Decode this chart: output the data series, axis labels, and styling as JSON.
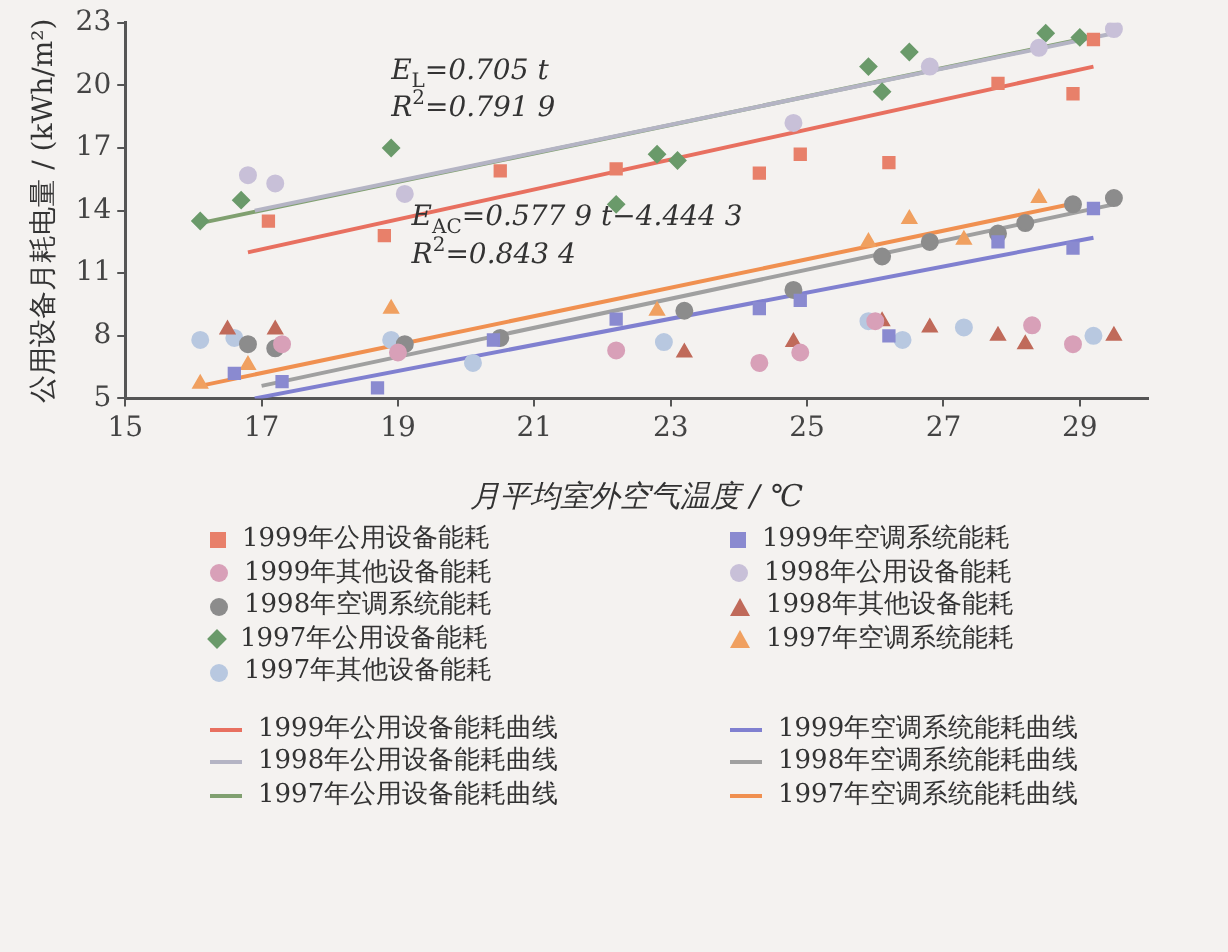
{
  "chart_data": {
    "type": "scatter",
    "xlabel": "月平均室外空气温度 / ℃",
    "ylabel": "公用设备月耗电量 / (kWh/m²)",
    "xlim": [
      15,
      30
    ],
    "xticks": [
      15,
      17,
      19,
      21,
      23,
      25,
      27,
      29
    ],
    "ylim": [
      5,
      23
    ],
    "yticks": [
      5,
      8,
      11,
      14,
      17,
      20,
      23
    ],
    "grid": false,
    "legend": "bottom",
    "annotations": [
      "E$_{L}$=0.705 t",
      "R$^{2}$=0.791 9",
      "E$_{AC}$=0.577 9 t−4.444 3",
      "R$^{2}$=0.843 4"
    ],
    "series": [
      {
        "name": "1999年公用设备能耗",
        "type": "scatter",
        "marker": "square",
        "color": "#e8806a",
        "x": [
          17.1,
          18.8,
          20.5,
          22.2,
          24.3,
          24.9,
          26.2,
          27.8,
          28.9,
          29.2
        ],
        "values": [
          13.5,
          12.8,
          15.9,
          16.0,
          15.8,
          16.7,
          16.3,
          20.1,
          19.6,
          22.2
        ]
      },
      {
        "name": "1999年空调系统能耗",
        "type": "scatter",
        "marker": "square",
        "color": "#8a8ad0",
        "x": [
          16.6,
          17.3,
          18.7,
          20.4,
          22.2,
          24.3,
          24.9,
          26.2,
          27.8,
          28.9,
          29.2
        ],
        "values": [
          6.2,
          5.8,
          5.5,
          7.8,
          8.8,
          9.3,
          9.7,
          8.0,
          12.5,
          12.2,
          14.1
        ]
      },
      {
        "name": "1999年其他设备能耗",
        "type": "scatter",
        "marker": "circle",
        "color": "#d8a0b8",
        "x": [
          17.3,
          19.0,
          22.2,
          24.3,
          24.9,
          26.0,
          28.3,
          28.9
        ],
        "values": [
          7.6,
          7.2,
          7.3,
          6.7,
          7.2,
          8.7,
          8.5,
          7.6
        ]
      },
      {
        "name": "1998年公用设备能耗",
        "type": "scatter",
        "marker": "circle",
        "color": "#c8c0d8",
        "x": [
          16.8,
          17.2,
          19.1,
          24.8,
          26.8,
          28.4,
          29.5
        ],
        "values": [
          15.7,
          15.3,
          14.8,
          18.2,
          20.9,
          21.8,
          22.7
        ]
      },
      {
        "name": "1998年空调系统能耗",
        "type": "scatter",
        "marker": "circle",
        "color": "#8c8c8c",
        "x": [
          16.8,
          17.2,
          19.1,
          20.5,
          23.2,
          24.8,
          26.1,
          26.8,
          27.8,
          28.2,
          28.9,
          29.5
        ],
        "values": [
          7.6,
          7.4,
          7.6,
          7.9,
          9.2,
          10.2,
          11.8,
          12.5,
          12.9,
          13.4,
          14.3,
          14.6
        ]
      },
      {
        "name": "1998年其他设备能耗",
        "type": "scatter",
        "marker": "triangle",
        "color": "#c06a5a",
        "x": [
          16.5,
          17.2,
          23.2,
          24.8,
          26.1,
          26.8,
          27.8,
          28.2,
          29.5
        ],
        "values": [
          8.3,
          8.3,
          7.2,
          7.7,
          8.7,
          8.4,
          8.0,
          7.6,
          8.0
        ]
      },
      {
        "name": "1997年公用设备能耗",
        "type": "scatter",
        "marker": "diamond",
        "color": "#6a9a6a",
        "x": [
          16.1,
          16.7,
          18.9,
          22.2,
          22.8,
          23.1,
          25.9,
          26.1,
          26.5,
          28.5,
          29.0
        ],
        "values": [
          13.5,
          14.5,
          17.0,
          14.3,
          16.7,
          16.4,
          20.9,
          19.7,
          21.6,
          22.5,
          22.3
        ]
      },
      {
        "name": "1997年空调系统能耗",
        "type": "scatter",
        "marker": "triangle",
        "color": "#f0a060",
        "x": [
          16.1,
          16.8,
          18.9,
          22.8,
          25.9,
          26.5,
          27.3,
          28.4
        ],
        "values": [
          5.7,
          6.6,
          9.3,
          9.2,
          12.5,
          13.6,
          12.6,
          14.6
        ]
      },
      {
        "name": "1997年其他设备能耗",
        "type": "scatter",
        "marker": "circle",
        "color": "#b8c8e0",
        "x": [
          16.1,
          16.6,
          18.9,
          20.1,
          22.9,
          25.9,
          26.4,
          27.3,
          29.2
        ],
        "values": [
          7.8,
          7.9,
          7.8,
          6.7,
          7.7,
          8.7,
          7.8,
          8.4,
          8.0
        ]
      },
      {
        "name": "1999年公用设备能耗曲线",
        "type": "line",
        "marker": "none",
        "color": "#e87060",
        "x": [
          16.8,
          29.2
        ],
        "values": [
          12.0,
          20.9
        ]
      },
      {
        "name": "1999年空调系统能耗曲线",
        "type": "line",
        "marker": "none",
        "color": "#8080d0",
        "x": [
          16.9,
          29.2
        ],
        "values": [
          5.0,
          12.7
        ]
      },
      {
        "name": "1998年公用设备能耗曲线",
        "type": "line",
        "marker": "none",
        "color": "#b4b4c4",
        "x": [
          16.9,
          29.5
        ],
        "values": [
          14.0,
          22.5
        ]
      },
      {
        "name": "1998年空调系统能耗曲线",
        "type": "line",
        "marker": "none",
        "color": "#a0a0a0",
        "x": [
          17.0,
          29.5
        ],
        "values": [
          5.6,
          14.3
        ]
      },
      {
        "name": "1997年公用设备能耗曲线",
        "type": "line",
        "marker": "none",
        "color": "#80a070",
        "x": [
          16.1,
          29.0
        ],
        "values": [
          13.4,
          22.2
        ]
      },
      {
        "name": "1997年空调系统能耗曲线",
        "type": "line",
        "marker": "none",
        "color": "#f09050",
        "x": [
          16.1,
          29.0
        ],
        "values": [
          5.6,
          14.4
        ]
      }
    ]
  }
}
